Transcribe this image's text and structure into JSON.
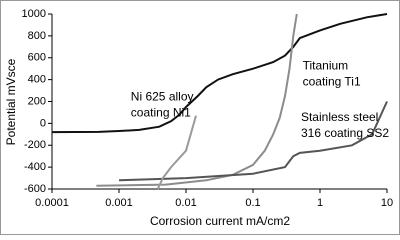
{
  "chart_data": {
    "type": "line",
    "x_scale": "log",
    "x_label": "Corrosion current mA/cm2",
    "y_label": "Potential mVsce",
    "xlim": [
      0.0001,
      10
    ],
    "xticks": [
      0.0001,
      0.001,
      0.01,
      0.1,
      1,
      10
    ],
    "ylim": [
      -600,
      1000
    ],
    "yticks": [
      -600,
      -400,
      -200,
      0,
      200,
      400,
      600,
      800,
      1000
    ],
    "series": [
      {
        "color": "#111111",
        "x": [
          0.0001,
          0.0005,
          0.001,
          0.002,
          0.004,
          0.006,
          0.008,
          0.01,
          0.015,
          0.02,
          0.03,
          0.05,
          0.1,
          0.2,
          0.3,
          0.4,
          0.5,
          1,
          2,
          5,
          10
        ],
        "values": [
          -80,
          -78,
          -70,
          -60,
          -30,
          20,
          80,
          150,
          250,
          330,
          400,
          450,
          500,
          560,
          620,
          700,
          780,
          850,
          910,
          970,
          1000
        ]
      },
      {
        "color": "#8c8c8c",
        "x": [
          0.00046,
          0.005,
          0.02,
          0.05,
          0.1,
          0.15,
          0.2,
          0.25,
          0.3,
          0.35,
          0.4,
          0.45
        ],
        "values": [
          -570,
          -560,
          -520,
          -470,
          -380,
          -250,
          -100,
          50,
          250,
          500,
          800,
          1000
        ]
      },
      {
        "color": "#555555",
        "x": [
          0.001,
          0.01,
          0.1,
          0.3,
          0.4,
          0.5,
          1,
          3,
          6,
          10
        ],
        "values": [
          -520,
          -500,
          -460,
          -400,
          -300,
          -270,
          -250,
          -200,
          -100,
          200
        ]
      },
      {
        "color": "#9a9a9a",
        "x": [
          0.0038,
          0.0045,
          0.006,
          0.01,
          0.0141
        ],
        "values": [
          -600,
          -500,
          -400,
          -250,
          70
        ]
      }
    ],
    "annotations": [
      {
        "lines": [
          "Ni 625 alloy",
          "coating Ni1"
        ],
        "x": 0.0015,
        "y": 240
      },
      {
        "lines": [
          "Titanium",
          "coating Ti1"
        ],
        "x": 0.55,
        "y": 520
      },
      {
        "lines": [
          "Stainless steel",
          "316 coating SS2"
        ],
        "x": 0.52,
        "y": 50
      }
    ]
  }
}
